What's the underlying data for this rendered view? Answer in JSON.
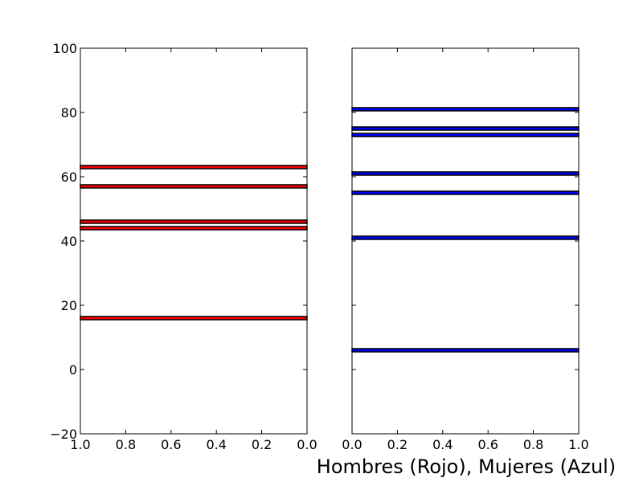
{
  "chart_data": {
    "type": "bar",
    "orientation": "horizontal",
    "xlabel": "Hombres (Rojo), Mujeres (Azul)",
    "grid": false,
    "ylim": [
      -20,
      100
    ],
    "yticks": [
      -20,
      0,
      20,
      40,
      60,
      80,
      100
    ],
    "ytick_labels": [
      "−20",
      "0",
      "20",
      "40",
      "60",
      "80",
      "100"
    ],
    "panels": [
      {
        "name": "hombres",
        "color": "#ff0000",
        "xlim": [
          1.0,
          0.0
        ],
        "x_inverted": true,
        "xticks": [
          1.0,
          0.8,
          0.6,
          0.4,
          0.2,
          0.0
        ],
        "xtick_labels": [
          "1.0",
          "0.8",
          "0.6",
          "0.4",
          "0.2",
          "0.0"
        ],
        "bar_height": 1,
        "bars": [
          {
            "y": 16,
            "value": 1
          },
          {
            "y": 44,
            "value": 1
          },
          {
            "y": 46,
            "value": 1
          },
          {
            "y": 57,
            "value": 1
          },
          {
            "y": 63,
            "value": 1
          }
        ]
      },
      {
        "name": "mujeres",
        "color": "#0000ff",
        "xlim": [
          0.0,
          1.0
        ],
        "x_inverted": false,
        "xticks": [
          0.0,
          0.2,
          0.4,
          0.6,
          0.8,
          1.0
        ],
        "xtick_labels": [
          "0.0",
          "0.2",
          "0.4",
          "0.6",
          "0.8",
          "1.0"
        ],
        "bar_height": 1,
        "bars": [
          {
            "y": 6,
            "value": 1
          },
          {
            "y": 41,
            "value": 1
          },
          {
            "y": 55,
            "value": 1
          },
          {
            "y": 61,
            "value": 1
          },
          {
            "y": 73,
            "value": 1
          },
          {
            "y": 75,
            "value": 1
          },
          {
            "y": 81,
            "value": 1
          }
        ]
      }
    ]
  }
}
